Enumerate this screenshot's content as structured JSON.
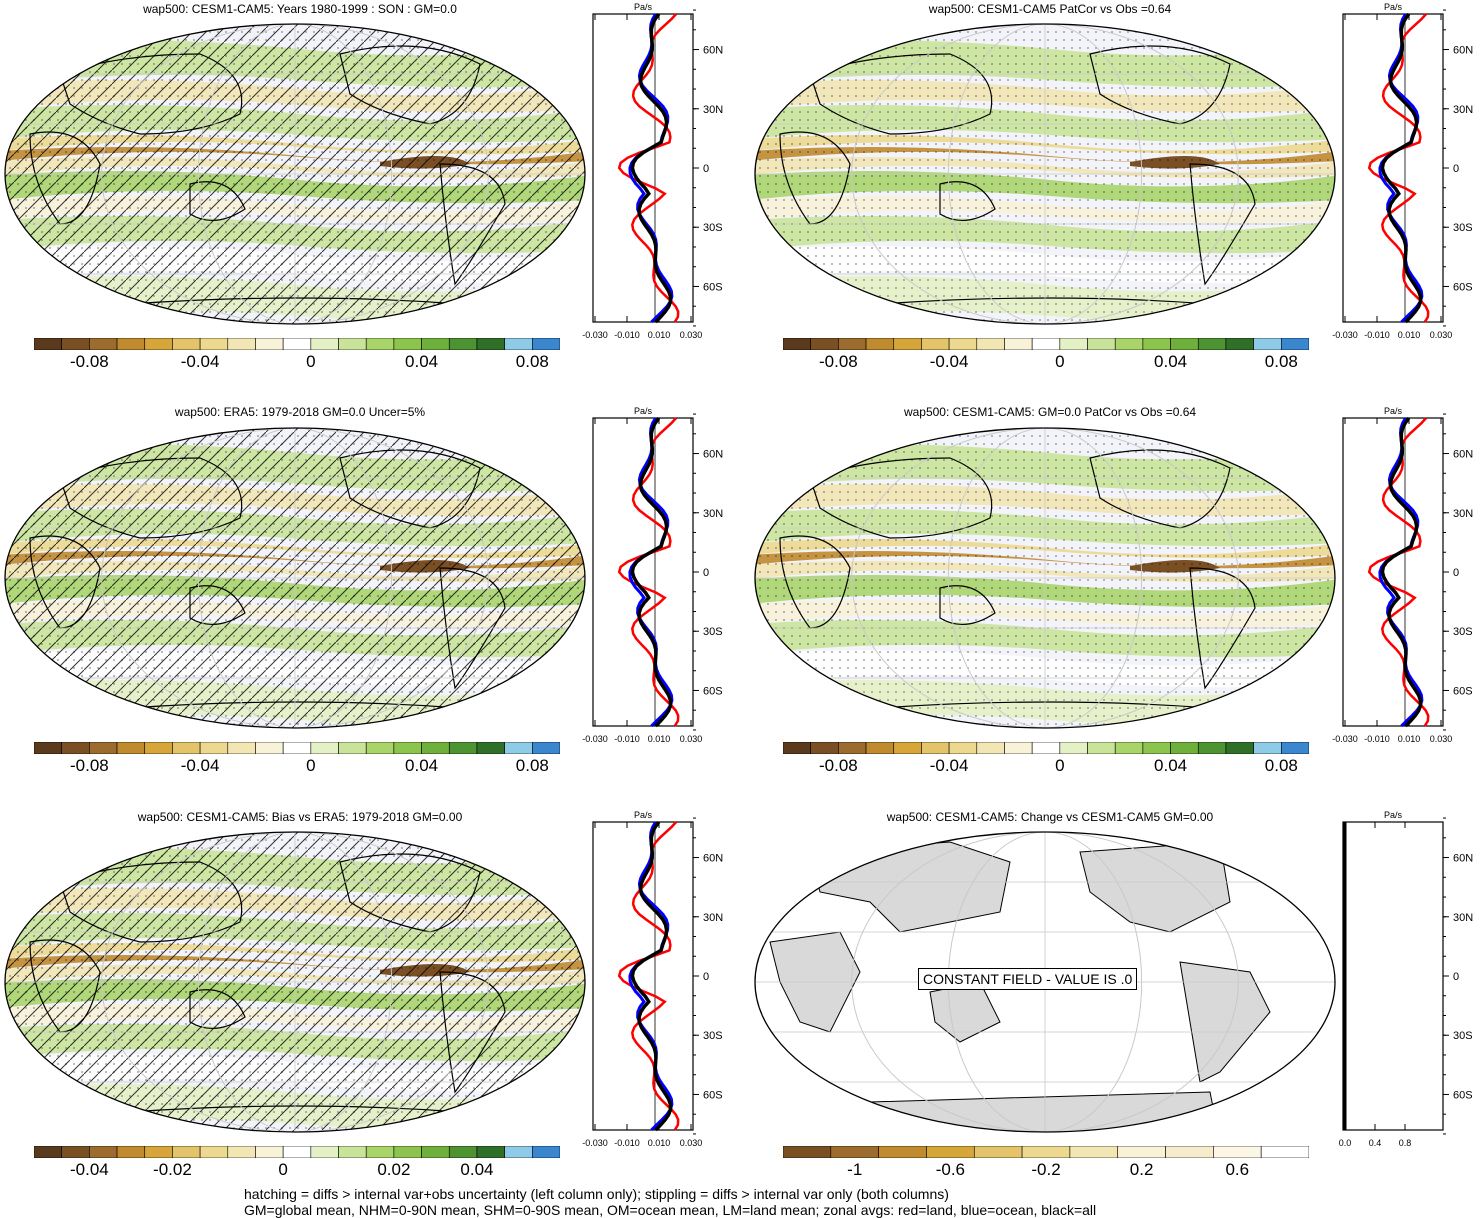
{
  "panels": [
    {
      "title": "wap500: CESM1-CAM5: Years 1980-1999 : SON : GM=0.0",
      "hatched": true,
      "constant": false
    },
    {
      "title": "wap500: CESM1-CAM5 PatCor vs Obs =0.64",
      "hatched": false,
      "constant": false
    },
    {
      "title": "wap500: ERA5: 1979-2018 GM=0.0 Uncer=5%",
      "hatched": true,
      "constant": false
    },
    {
      "title": "wap500: CESM1-CAM5: GM=0.0 PatCor vs Obs =0.64",
      "hatched": false,
      "constant": false
    },
    {
      "title": "wap500: CESM1-CAM5: Bias vs ERA5: 1979-2018  GM=0.00",
      "hatched": true,
      "constant": false
    },
    {
      "title": "wap500: CESM1-CAM5: Change vs CESM1-CAM5 GM=0.00",
      "hatched": false,
      "constant": true,
      "constant_text": "CONSTANT FIELD - VALUE IS .0"
    }
  ],
  "zonal_unit": "Pa/s",
  "zonal_ticks": {
    "standard": [
      "-0.030",
      "-0.010",
      "0.010",
      "0.030"
    ],
    "constant": [
      "0.0",
      "0.4",
      "0.8"
    ]
  },
  "lat_labels": [
    "60N",
    "30N",
    "0",
    "30S",
    "60S"
  ],
  "colorbars": [
    {
      "labels": [
        "-0.08",
        "-0.04",
        "0",
        "0.04",
        "0.08"
      ]
    },
    {
      "labels": [
        "-0.08",
        "-0.04",
        "0",
        "0.04",
        "0.08"
      ]
    },
    {
      "labels": [
        "-0.08",
        "-0.04",
        "0",
        "0.04",
        "0.08"
      ]
    },
    {
      "labels": [
        "-0.08",
        "-0.04",
        "0",
        "0.04",
        "0.08"
      ]
    },
    {
      "labels": [
        "-0.04",
        "-0.02",
        "0",
        "0.02",
        "0.04"
      ]
    },
    {
      "labels": [
        "-1",
        "-0.6",
        "-0.2",
        "0.2",
        "0.6"
      ]
    }
  ],
  "colors": {
    "palette": [
      "#5a3a1c",
      "#7a4f24",
      "#9c6b2e",
      "#c08a2e",
      "#d6a63a",
      "#e3c46a",
      "#ecd88f",
      "#f2e6b4",
      "#f8f2d8",
      "#ffffff",
      "#e4f1c6",
      "#c9e49a",
      "#a9d46a",
      "#8dc44e",
      "#6fb03c",
      "#4e9331",
      "#2f6f27",
      "#8ecbe6",
      "#3a86cf"
    ],
    "land_red": "#ff0000",
    "ocean_blue": "#0000ff",
    "all_black": "#000000"
  },
  "footer": {
    "line1": "hatching = diffs > internal var+obs uncertainty (left column only); stippling = diffs > internal var only (both columns)",
    "line2": "GM=global mean, NHM=0-90N mean, SHM=0-90S mean, OM=ocean mean, LM=land mean; zonal avgs: red=land, blue=ocean, black=all"
  }
}
